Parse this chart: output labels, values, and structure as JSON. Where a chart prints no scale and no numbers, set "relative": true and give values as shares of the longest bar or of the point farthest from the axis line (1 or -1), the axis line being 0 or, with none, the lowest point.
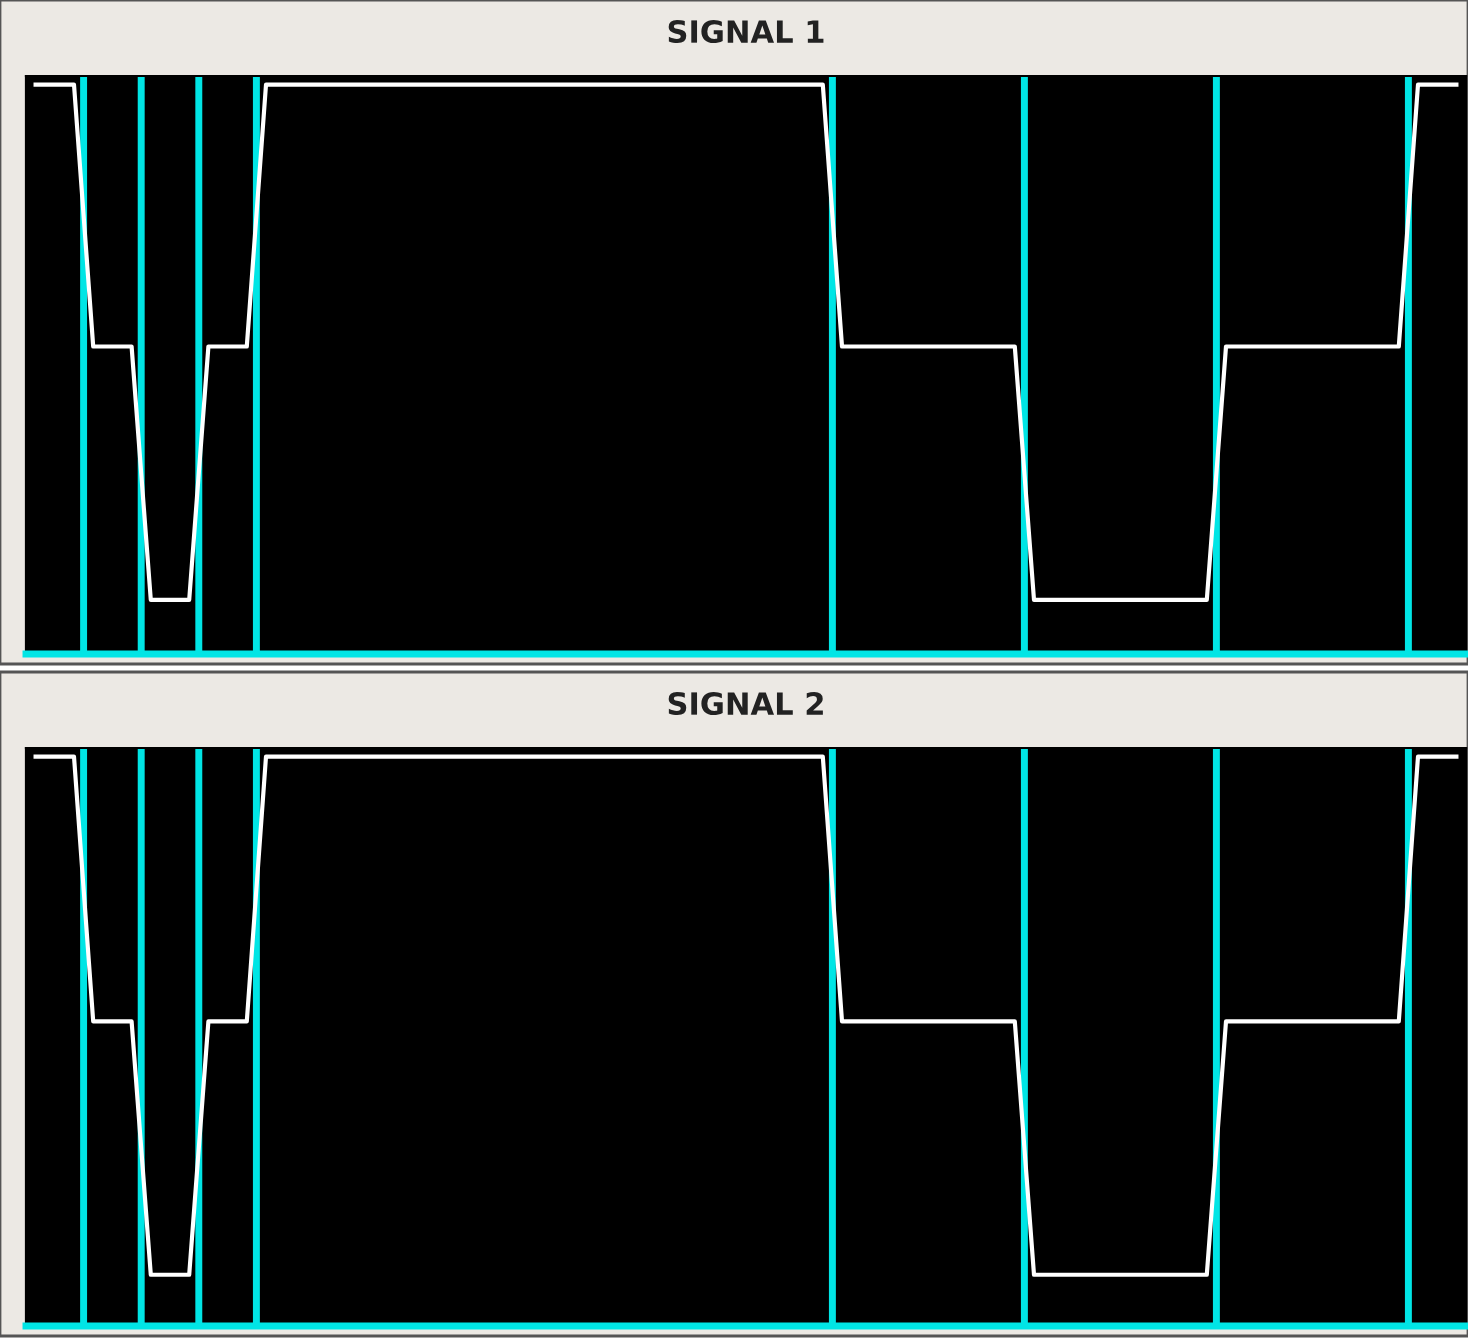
{
  "chart_data": [
    {
      "type": "line",
      "title": "SIGNAL 1",
      "relative": true,
      "tick_labels": false,
      "categories": [
        null,
        null,
        null,
        null,
        null,
        null,
        null,
        null,
        null,
        null,
        null,
        null,
        null,
        null,
        null,
        null,
        null,
        null,
        null,
        null,
        null,
        null,
        null,
        null,
        null,
        null,
        null,
        null,
        null,
        null,
        null,
        null,
        null,
        null,
        null,
        null,
        null,
        null,
        null,
        null,
        null,
        null,
        null,
        null,
        null,
        null,
        null,
        null,
        null,
        null,
        null,
        null,
        null,
        null,
        null,
        null,
        null,
        null,
        null,
        null,
        null,
        null,
        null,
        null,
        null,
        null,
        null,
        null,
        null,
        null,
        null,
        null,
        null,
        null,
        null
      ],
      "series": [
        {
          "color": "#ffffff",
          "values": [
            1,
            1,
            1,
            0.54,
            0.54,
            0.54,
            0.095,
            0.095,
            0.095,
            0.54,
            0.54,
            0.54,
            1,
            1,
            1,
            1,
            1,
            1,
            1,
            1,
            1,
            1,
            1,
            1,
            1,
            1,
            1,
            1,
            1,
            1,
            1,
            1,
            1,
            1,
            1,
            1,
            1,
            1,
            1,
            1,
            1,
            1,
            0.54,
            0.54,
            0.54,
            0.54,
            0.54,
            0.54,
            0.54,
            0.54,
            0.54,
            0.54,
            0.095,
            0.095,
            0.095,
            0.095,
            0.095,
            0.095,
            0.095,
            0.095,
            0.095,
            0.095,
            0.54,
            0.54,
            0.54,
            0.54,
            0.54,
            0.54,
            0.54,
            0.54,
            0.54,
            0.54,
            1,
            1,
            1
          ]
        }
      ]
    },
    {
      "type": "line",
      "title": "SIGNAL 2",
      "relative": true,
      "tick_labels": false,
      "categories": [
        null,
        null,
        null,
        null,
        null,
        null,
        null,
        null,
        null,
        null,
        null,
        null,
        null,
        null,
        null,
        null,
        null,
        null,
        null,
        null,
        null,
        null,
        null,
        null,
        null,
        null,
        null,
        null,
        null,
        null,
        null,
        null,
        null,
        null,
        null,
        null,
        null,
        null,
        null,
        null,
        null,
        null,
        null,
        null,
        null,
        null,
        null,
        null,
        null,
        null,
        null,
        null,
        null,
        null,
        null,
        null,
        null,
        null,
        null,
        null,
        null,
        null,
        null,
        null,
        null,
        null,
        null,
        null,
        null,
        null,
        null,
        null,
        null,
        null,
        null
      ],
      "series": [
        {
          "color": "#ffffff",
          "values": [
            1,
            1,
            1,
            0.535,
            0.535,
            0.535,
            0.09,
            0.09,
            0.09,
            0.535,
            0.535,
            0.535,
            1,
            1,
            1,
            1,
            1,
            1,
            1,
            1,
            1,
            1,
            1,
            1,
            1,
            1,
            1,
            1,
            1,
            1,
            1,
            1,
            1,
            1,
            1,
            1,
            1,
            1,
            1,
            1,
            1,
            1,
            0.535,
            0.535,
            0.535,
            0.535,
            0.535,
            0.535,
            0.535,
            0.535,
            0.535,
            0.535,
            0.09,
            0.09,
            0.09,
            0.09,
            0.09,
            0.09,
            0.09,
            0.09,
            0.09,
            0.09,
            0.535,
            0.535,
            0.535,
            0.535,
            0.535,
            0.535,
            0.535,
            0.535,
            0.535,
            0.535,
            1,
            1,
            1
          ]
        }
      ]
    }
  ]
}
